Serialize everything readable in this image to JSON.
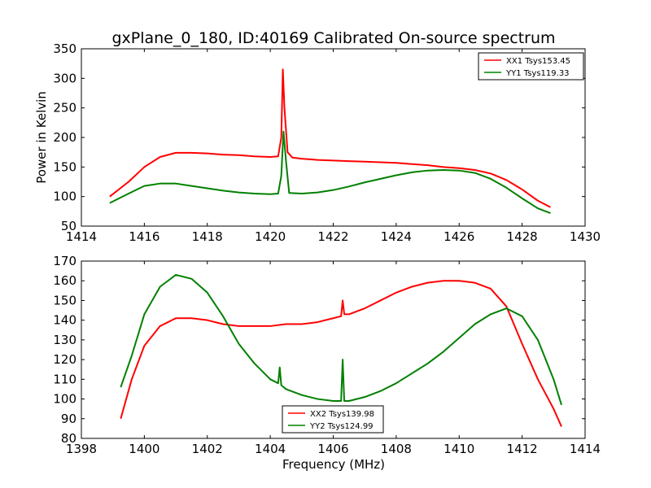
{
  "colors": {
    "red": "#ff0000",
    "green": "#008000",
    "axes": "#000000",
    "background": "#ffffff"
  },
  "chart_data": [
    {
      "type": "line",
      "title": "gxPlane_0_180, ID:40169 Calibrated On-source spectrum",
      "xlabel": "",
      "ylabel": "Power in Kelvin",
      "xlim": [
        1414,
        1430
      ],
      "ylim": [
        50,
        350
      ],
      "xticks": [
        1414,
        1416,
        1418,
        1420,
        1422,
        1424,
        1426,
        1428,
        1430
      ],
      "yticks": [
        50,
        100,
        150,
        200,
        250,
        300,
        350
      ],
      "grid": false,
      "legend_position": "top-right",
      "series": [
        {
          "name": "XX1 Tsys153.45",
          "color": "#ff0000",
          "x": [
            1414.9,
            1415.5,
            1416.0,
            1416.5,
            1417.0,
            1417.5,
            1418.0,
            1418.5,
            1419.0,
            1419.5,
            1420.0,
            1420.25,
            1420.35,
            1420.4,
            1420.45,
            1420.55,
            1420.7,
            1421.0,
            1421.5,
            1422.0,
            1422.5,
            1423.0,
            1423.5,
            1424.0,
            1424.5,
            1425.0,
            1425.5,
            1426.0,
            1426.5,
            1427.0,
            1427.5,
            1428.0,
            1428.5,
            1428.9
          ],
          "y": [
            100,
            125,
            150,
            167,
            174,
            174,
            173,
            171,
            170,
            168,
            167,
            168,
            200,
            315,
            250,
            175,
            166,
            164,
            162,
            161,
            160,
            159,
            158,
            157,
            155,
            153,
            150,
            148,
            145,
            139,
            128,
            112,
            93,
            82
          ]
        },
        {
          "name": "YY1 Tsys119.33",
          "color": "#008000",
          "x": [
            1414.9,
            1415.5,
            1416.0,
            1416.5,
            1417.0,
            1417.5,
            1418.0,
            1418.5,
            1419.0,
            1419.5,
            1420.0,
            1420.25,
            1420.35,
            1420.42,
            1420.5,
            1420.6,
            1421.0,
            1421.5,
            1422.0,
            1422.5,
            1423.0,
            1423.5,
            1424.0,
            1424.5,
            1425.0,
            1425.5,
            1426.0,
            1426.5,
            1427.0,
            1427.5,
            1428.0,
            1428.5,
            1428.9
          ],
          "y": [
            89,
            105,
            118,
            122,
            122,
            118,
            114,
            110,
            107,
            105,
            104,
            105,
            135,
            210,
            160,
            106,
            105,
            107,
            111,
            117,
            124,
            130,
            136,
            141,
            144,
            145,
            144,
            140,
            130,
            115,
            97,
            80,
            72
          ]
        }
      ]
    },
    {
      "type": "line",
      "title": "",
      "xlabel": "Frequency (MHz)",
      "ylabel": "",
      "xlim": [
        1398,
        1414
      ],
      "ylim": [
        80,
        170
      ],
      "xticks": [
        1398,
        1400,
        1402,
        1404,
        1406,
        1408,
        1410,
        1412,
        1414
      ],
      "yticks": [
        80,
        90,
        100,
        110,
        120,
        130,
        140,
        150,
        160,
        170
      ],
      "grid": false,
      "legend_position": "bottom-center",
      "series": [
        {
          "name": "XX2 Tsys139.98",
          "color": "#ff0000",
          "x": [
            1399.25,
            1399.6,
            1400.0,
            1400.5,
            1401.0,
            1401.5,
            1402.0,
            1402.5,
            1403.0,
            1403.5,
            1404.0,
            1404.5,
            1405.0,
            1405.5,
            1406.0,
            1406.25,
            1406.3,
            1406.35,
            1406.5,
            1407.0,
            1407.5,
            1408.0,
            1408.5,
            1409.0,
            1409.5,
            1410.0,
            1410.5,
            1411.0,
            1411.5,
            1412.0,
            1412.5,
            1413.0,
            1413.25
          ],
          "y": [
            90,
            110,
            127,
            137,
            141,
            141,
            140,
            138,
            137,
            137,
            137,
            138,
            138,
            139,
            141,
            142,
            150,
            143,
            143,
            146,
            150,
            154,
            157,
            159,
            160,
            160,
            159,
            156,
            147,
            128,
            110,
            95,
            86
          ]
        },
        {
          "name": "YY2 Tsys124.99",
          "color": "#008000",
          "x": [
            1399.25,
            1399.6,
            1400.0,
            1400.5,
            1401.0,
            1401.5,
            1402.0,
            1402.5,
            1403.0,
            1403.5,
            1404.0,
            1404.25,
            1404.3,
            1404.35,
            1404.5,
            1405.0,
            1405.5,
            1406.0,
            1406.25,
            1406.3,
            1406.35,
            1406.5,
            1407.0,
            1407.5,
            1408.0,
            1408.5,
            1409.0,
            1409.5,
            1410.0,
            1410.5,
            1411.0,
            1411.5,
            1412.0,
            1412.5,
            1413.0,
            1413.25
          ],
          "y": [
            106,
            122,
            143,
            157,
            163,
            161,
            154,
            142,
            128,
            118,
            110,
            108,
            116,
            107,
            105,
            102,
            100,
            99,
            99,
            120,
            99,
            99,
            101,
            104,
            108,
            113,
            118,
            124,
            131,
            138,
            143,
            146,
            142,
            130,
            110,
            97
          ]
        }
      ]
    }
  ]
}
